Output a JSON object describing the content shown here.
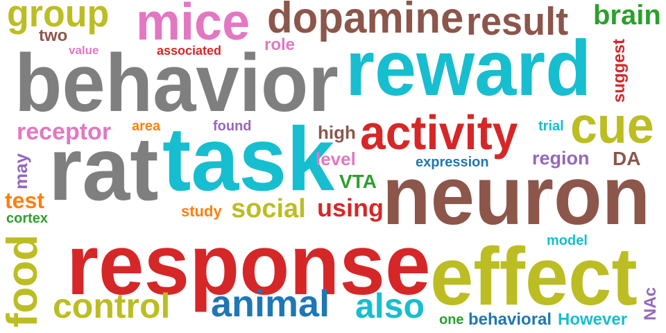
{
  "words": [
    {
      "text": "group",
      "color": "#bcbd22"
    },
    {
      "text": "mice",
      "color": "#e377c2"
    },
    {
      "text": "dopamine",
      "color": "#8c564b"
    },
    {
      "text": "result",
      "color": "#8c564b"
    },
    {
      "text": "brain",
      "color": "#2ca02c"
    },
    {
      "text": "two",
      "color": "#8c564b"
    },
    {
      "text": "value",
      "color": "#e377c2"
    },
    {
      "text": "associated",
      "color": "#d62728"
    },
    {
      "text": "role",
      "color": "#e377c2"
    },
    {
      "text": "suggest",
      "color": "#d62728"
    },
    {
      "text": "behavior",
      "color": "#7f7f7f"
    },
    {
      "text": "reward",
      "color": "#17becf"
    },
    {
      "text": "receptor",
      "color": "#e377c2"
    },
    {
      "text": "area",
      "color": "#ff7f0e"
    },
    {
      "text": "found",
      "color": "#9467bd"
    },
    {
      "text": "high",
      "color": "#8c564b"
    },
    {
      "text": "activity",
      "color": "#d62728"
    },
    {
      "text": "trial",
      "color": "#17becf"
    },
    {
      "text": "cue",
      "color": "#bcbd22"
    },
    {
      "text": "rat",
      "color": "#7f7f7f"
    },
    {
      "text": "task",
      "color": "#17becf"
    },
    {
      "text": "level",
      "color": "#e377c2"
    },
    {
      "text": "expression",
      "color": "#1f77b4"
    },
    {
      "text": "region",
      "color": "#9467bd"
    },
    {
      "text": "DA",
      "color": "#8c564b"
    },
    {
      "text": "may",
      "color": "#9467bd"
    },
    {
      "text": "VTA",
      "color": "#2ca02c"
    },
    {
      "text": "neuron",
      "color": "#8c564b"
    },
    {
      "text": "test",
      "color": "#ff7f0e"
    },
    {
      "text": "cortex",
      "color": "#2ca02c"
    },
    {
      "text": "study",
      "color": "#ff7f0e"
    },
    {
      "text": "social",
      "color": "#bcbd22"
    },
    {
      "text": "using",
      "color": "#d62728"
    },
    {
      "text": "food",
      "color": "#bcbd22"
    },
    {
      "text": "response",
      "color": "#d62728"
    },
    {
      "text": "model",
      "color": "#17becf"
    },
    {
      "text": "effect",
      "color": "#bcbd22"
    },
    {
      "text": "control",
      "color": "#bcbd22"
    },
    {
      "text": "animal",
      "color": "#1f77b4"
    },
    {
      "text": "also",
      "color": "#17becf"
    },
    {
      "text": "NAc",
      "color": "#9467bd"
    },
    {
      "text": "one",
      "color": "#2ca02c"
    },
    {
      "text": "behavioral",
      "color": "#1f77b4"
    },
    {
      "text": "However",
      "color": "#17becf"
    }
  ]
}
